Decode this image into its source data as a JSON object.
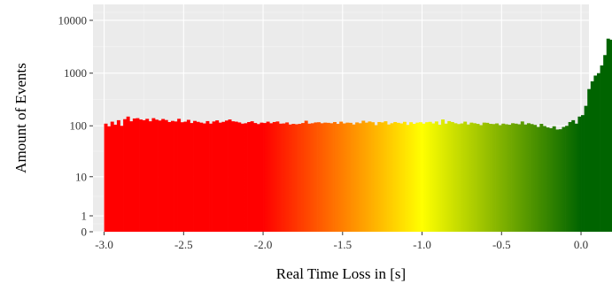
{
  "chart_data": {
    "type": "bar",
    "subtype": "histogram",
    "title": "",
    "xlabel": "Real Time Loss in [s]",
    "ylabel": "Amount of Events",
    "xlim": [
      -3.07,
      0.05
    ],
    "x_ticks": [
      {
        "value": -3.0,
        "label": "-3.0"
      },
      {
        "value": -2.5,
        "label": "-2.5"
      },
      {
        "value": -2.0,
        "label": "-2.0"
      },
      {
        "value": -1.5,
        "label": "-1.5"
      },
      {
        "value": -1.0,
        "label": "-1.0"
      },
      {
        "value": -0.5,
        "label": "-0.5"
      },
      {
        "value": 0.0,
        "label": "0.0"
      }
    ],
    "y_scale": "pseudo-log (log10(1+y))",
    "ylim": [
      0,
      20000
    ],
    "y_ticks": [
      {
        "value": 0,
        "label": "0"
      },
      {
        "value": 1,
        "label": "1"
      },
      {
        "value": 10,
        "label": "10"
      },
      {
        "value": 100,
        "label": "100"
      },
      {
        "value": 1000,
        "label": "1000"
      },
      {
        "value": 10000,
        "label": "10000"
      }
    ],
    "grid": true,
    "bin_width": 0.02,
    "x_start": -3.0,
    "color_gradient": [
      {
        "x": -3.0,
        "color": "#ff0000"
      },
      {
        "x": -2.0,
        "color": "#ff0000"
      },
      {
        "x": -1.0,
        "color": "#ffff00"
      },
      {
        "x": 0.0,
        "color": "#006400"
      }
    ],
    "values": [
      110,
      98,
      120,
      105,
      128,
      100,
      134,
      150,
      122,
      138,
      140,
      132,
      128,
      136,
      122,
      140,
      131,
      126,
      135,
      129,
      118,
      124,
      121,
      136,
      117,
      120,
      130,
      113,
      124,
      119,
      115,
      111,
      123,
      110,
      121,
      127,
      115,
      119,
      126,
      132,
      122,
      120,
      116,
      110,
      112,
      118,
      122,
      113,
      108,
      115,
      113,
      120,
      112,
      118,
      121,
      110,
      111,
      116,
      106,
      109,
      107,
      109,
      113,
      125,
      110,
      112,
      116,
      117,
      112,
      115,
      114,
      112,
      118,
      109,
      120,
      111,
      115,
      114,
      106,
      116,
      112,
      125,
      115,
      121,
      117,
      103,
      118,
      116,
      122,
      106,
      112,
      118,
      114,
      111,
      119,
      104,
      117,
      109,
      115,
      117,
      110,
      117,
      119,
      111,
      121,
      105,
      132,
      110,
      123,
      118,
      112,
      108,
      111,
      120,
      106,
      115,
      112,
      109,
      103,
      115,
      114,
      109,
      108,
      111,
      103,
      110,
      107,
      105,
      112,
      110,
      107,
      121,
      106,
      112,
      108,
      104,
      95,
      109,
      99,
      93,
      90,
      98,
      85,
      86,
      95,
      100,
      118,
      128,
      110,
      150,
      160,
      240,
      500,
      700,
      900,
      1000,
      1400,
      2200,
      4500,
      4300
    ]
  }
}
